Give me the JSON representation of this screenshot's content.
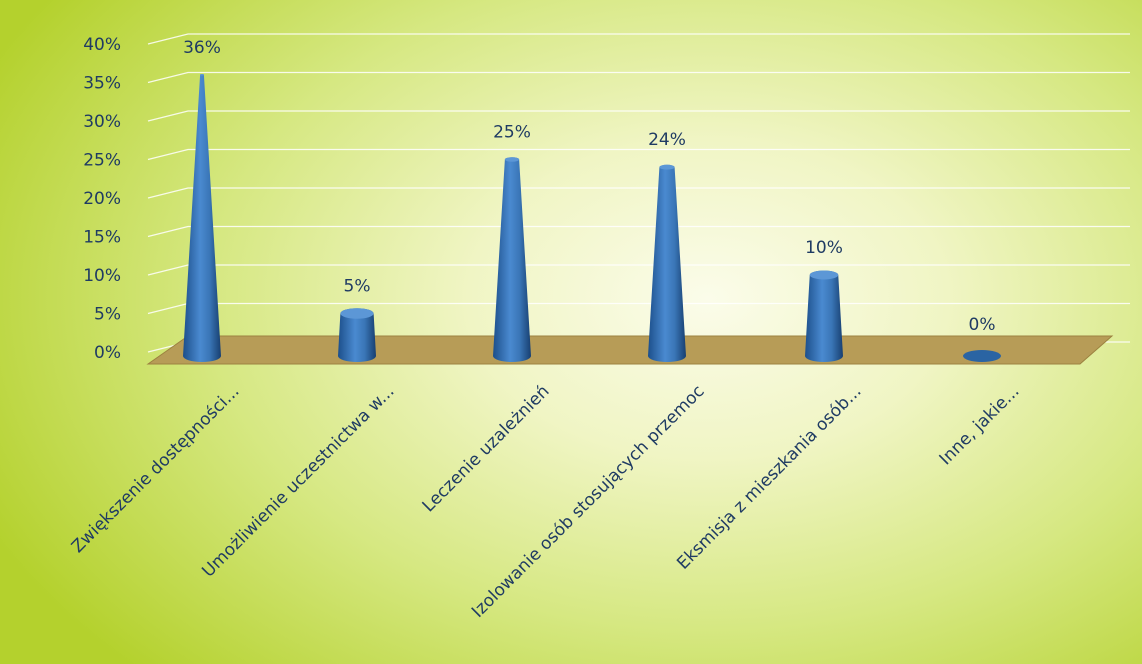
{
  "chart_data": {
    "type": "bar",
    "style": "3d-cone",
    "categories": [
      "Zwiększenie dostępności...",
      "Umożliwienie uczestnictwa w...",
      "Leczenie uzależnień",
      "Izolowanie osób stosujących przemoc",
      "Eksmisja z mieszkania osób...",
      "Inne, jakie..."
    ],
    "values": [
      36,
      5,
      25,
      24,
      10,
      0
    ],
    "data_labels": [
      "36%",
      "5%",
      "25%",
      "24%",
      "10%",
      "0%"
    ],
    "ylim": [
      0,
      40
    ],
    "y_ticks": [
      "0%",
      "5%",
      "10%",
      "15%",
      "20%",
      "25%",
      "30%",
      "35%",
      "40%"
    ],
    "grid": true,
    "colors": {
      "bar": "#3a76b7",
      "floor": "#b79c57",
      "text": "#1f3b63"
    }
  }
}
